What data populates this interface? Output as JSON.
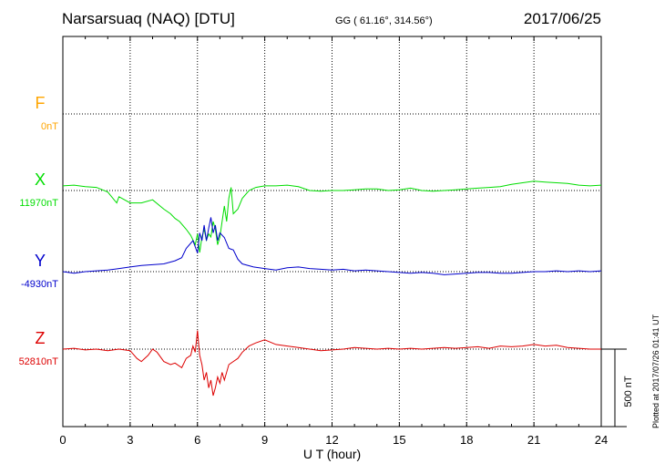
{
  "header": {
    "station": "Narsarsuaq (NAQ)  [DTU]",
    "coordinates": "GG ( 61.16°, 314.56°)",
    "date": "2017/06/25"
  },
  "footer": {
    "plotted_note": "Plotted at 2017/07/26 01:41 UT"
  },
  "chart_data": {
    "type": "line",
    "xlabel": "U T (hour)",
    "xlim": [
      0,
      24
    ],
    "xticks": [
      0,
      3,
      6,
      9,
      12,
      15,
      18,
      21,
      24
    ],
    "grid": true,
    "scale_bar": {
      "label": "500 nT",
      "value_nT": 500
    },
    "colors": {
      "F": "#ffa500",
      "X": "#00dd00",
      "Y": "#0000cc",
      "Z": "#dd0000"
    },
    "components": [
      {
        "name": "F",
        "baseline_label": "0nT",
        "x": [],
        "values": []
      },
      {
        "name": "X",
        "baseline_label": "11970nT",
        "x": [
          0,
          0.5,
          1,
          1.5,
          2,
          2.4,
          2.5,
          3,
          3.5,
          4,
          4.5,
          4.8,
          5,
          5.2,
          5.5,
          5.7,
          5.9,
          6,
          6.1,
          6.2,
          6.3,
          6.4,
          6.5,
          6.6,
          6.7,
          6.8,
          6.9,
          7,
          7.1,
          7.2,
          7.3,
          7.4,
          7.5,
          7.6,
          7.8,
          8,
          8.3,
          8.6,
          9,
          9.5,
          10,
          10.5,
          11,
          11.5,
          12,
          12.5,
          13,
          13.5,
          14,
          14.5,
          15,
          15.5,
          16,
          16.5,
          17,
          17.5,
          18,
          18.5,
          19,
          19.5,
          20,
          20.5,
          21,
          21.5,
          22,
          22.5,
          23,
          23.5,
          24
        ],
        "values": [
          30,
          35,
          25,
          20,
          -10,
          -80,
          -40,
          -80,
          -80,
          -60,
          -120,
          -150,
          -180,
          -200,
          -250,
          -290,
          -350,
          -280,
          -400,
          -300,
          -250,
          -320,
          -280,
          -300,
          -200,
          -250,
          -350,
          -300,
          -200,
          -100,
          -200,
          -50,
          20,
          -150,
          -120,
          -50,
          0,
          20,
          30,
          30,
          35,
          25,
          0,
          -5,
          0,
          0,
          5,
          10,
          10,
          0,
          5,
          15,
          0,
          -5,
          0,
          5,
          10,
          15,
          20,
          25,
          40,
          50,
          60,
          55,
          50,
          45,
          35,
          30,
          35
        ]
      },
      {
        "name": "Y",
        "baseline_label": "-4930nT",
        "x": [
          0,
          0.5,
          1,
          1.5,
          2,
          2.5,
          3,
          3.5,
          4,
          4.5,
          5,
          5.3,
          5.5,
          5.8,
          6,
          6.1,
          6.2,
          6.3,
          6.4,
          6.5,
          6.6,
          6.7,
          6.8,
          6.9,
          7,
          7.2,
          7.4,
          7.6,
          7.8,
          8,
          8.5,
          9,
          9.5,
          10,
          10.5,
          11,
          11.5,
          12,
          12.5,
          13,
          13.5,
          14,
          14.5,
          15,
          15.5,
          16,
          16.5,
          17,
          17.5,
          18,
          18.5,
          19,
          19.5,
          20,
          20.5,
          21,
          21.5,
          22,
          22.5,
          23,
          23.5,
          24
        ],
        "values": [
          0,
          -10,
          0,
          5,
          10,
          20,
          30,
          40,
          45,
          50,
          70,
          90,
          150,
          200,
          120,
          250,
          200,
          300,
          200,
          280,
          350,
          250,
          300,
          200,
          250,
          220,
          150,
          140,
          80,
          50,
          30,
          20,
          10,
          25,
          30,
          20,
          15,
          10,
          15,
          5,
          10,
          5,
          0,
          -5,
          -10,
          -5,
          -10,
          -20,
          -15,
          -10,
          -5,
          -5,
          -10,
          -10,
          -5,
          0,
          0,
          5,
          0,
          5,
          0,
          5
        ]
      },
      {
        "name": "Z",
        "baseline_label": "52810nT",
        "x": [
          0,
          0.5,
          1,
          1.5,
          2,
          2.5,
          3,
          3.3,
          3.5,
          3.8,
          4,
          4.2,
          4.5,
          4.8,
          5,
          5.3,
          5.5,
          5.7,
          5.8,
          5.9,
          6,
          6.05,
          6.1,
          6.2,
          6.3,
          6.4,
          6.5,
          6.6,
          6.7,
          6.8,
          6.9,
          7,
          7.1,
          7.2,
          7.4,
          7.6,
          7.8,
          8,
          8.3,
          8.6,
          9,
          9.5,
          10,
          10.5,
          11,
          11.5,
          12,
          12.5,
          13,
          13.5,
          14,
          14.5,
          15,
          15.5,
          16,
          16.5,
          17,
          17.5,
          18,
          18.5,
          19,
          19.5,
          20,
          20.5,
          21,
          21.5,
          22,
          22.5,
          23,
          23.5,
          24
        ],
        "values": [
          0,
          5,
          -5,
          0,
          -10,
          0,
          -10,
          -60,
          -80,
          -40,
          0,
          -20,
          -80,
          -100,
          -90,
          -120,
          -60,
          -40,
          20,
          -20,
          120,
          40,
          -40,
          -100,
          -200,
          -150,
          -250,
          -200,
          -300,
          -250,
          -180,
          -220,
          -150,
          -200,
          -100,
          -80,
          -60,
          -20,
          20,
          40,
          60,
          30,
          20,
          10,
          0,
          -10,
          -5,
          0,
          10,
          5,
          0,
          5,
          0,
          5,
          0,
          5,
          10,
          5,
          10,
          15,
          5,
          20,
          15,
          20,
          30,
          20,
          25,
          10,
          5,
          0,
          0
        ]
      }
    ]
  }
}
